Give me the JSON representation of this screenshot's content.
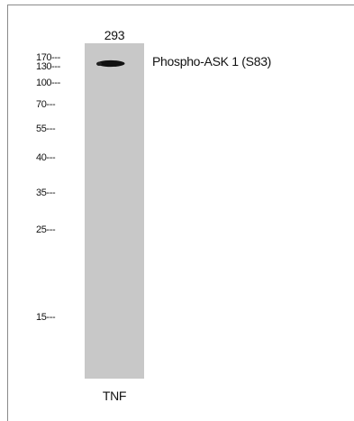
{
  "lane_header": "293",
  "target_label": "Phospho-ASK 1 (S83)",
  "treatment_label": "TNF",
  "markers": [
    {
      "label": "170---"
    },
    {
      "label": "130---"
    },
    {
      "label": "100---"
    },
    {
      "label": "70---"
    },
    {
      "label": "55---"
    },
    {
      "label": "40---"
    },
    {
      "label": "35---"
    },
    {
      "label": "25---"
    },
    {
      "label": "15---"
    }
  ],
  "colors": {
    "lane": "#c8c8c8",
    "band": "#111111",
    "frame": "#8a8a8a"
  }
}
